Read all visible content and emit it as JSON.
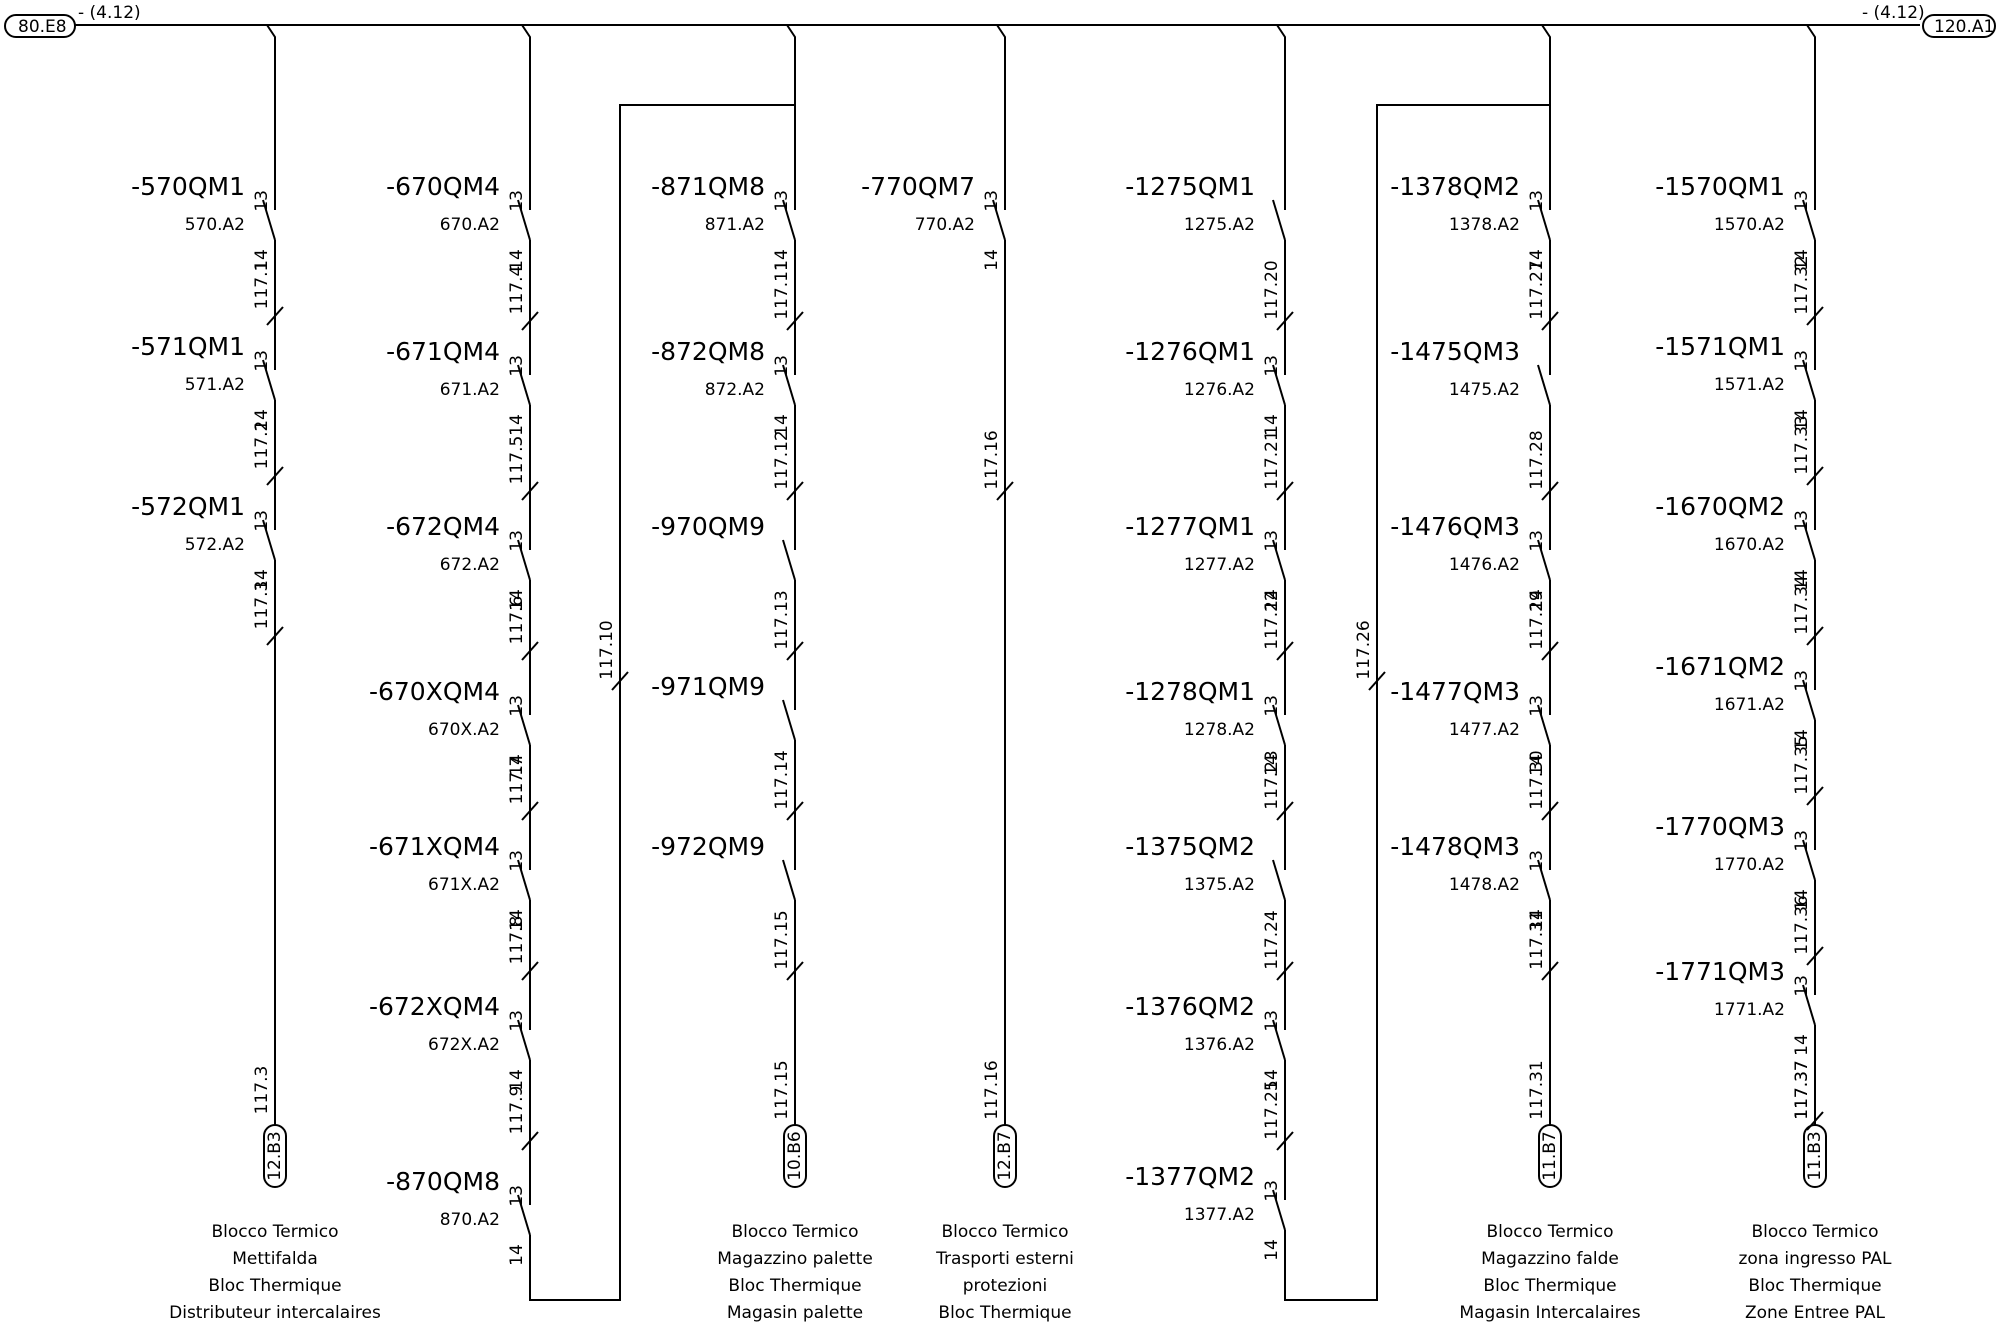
{
  "bus": {
    "left_ref": "80.E8",
    "left_page": "- (4.12)",
    "right_ref": "120.A1",
    "right_page": "- (4.12)"
  },
  "columns": [
    {
      "id": "c1",
      "devices": [
        {
          "name": "-570QM1",
          "ref": "570.A2",
          "wire": "117.1",
          "t13": "13",
          "t14": "14"
        },
        {
          "name": "-571QM1",
          "ref": "571.A2",
          "wire": "117.2",
          "t13": "13",
          "t14": "14"
        },
        {
          "name": "-572QM1",
          "ref": "572.A2",
          "wire": "117.3",
          "t13": "13",
          "t14": "14"
        }
      ],
      "end_wire": "117.3",
      "terminal": "12.B3",
      "caption": [
        "Blocco Termico",
        "Mettifalda",
        "Bloc Thermique",
        "Distributeur intercalaires"
      ]
    },
    {
      "id": "c2",
      "devices": [
        {
          "name": "-670QM4",
          "ref": "670.A2",
          "wire": "117.4",
          "t13": "13",
          "t14": "14"
        },
        {
          "name": "-671QM4",
          "ref": "671.A2",
          "wire": "117.5",
          "t13": "13",
          "t14": "14"
        },
        {
          "name": "-672QM4",
          "ref": "672.A2",
          "wire": "117.6",
          "t13": "13",
          "t14": "14"
        },
        {
          "name": "-670XQM4",
          "ref": "670X.A2",
          "wire": "117.7",
          "t13": "13",
          "t14": "14"
        },
        {
          "name": "-671XQM4",
          "ref": "671X.A2",
          "wire": "117.8",
          "t13": "13",
          "t14": "14"
        },
        {
          "name": "-672XQM4",
          "ref": "672X.A2",
          "wire": "117.9",
          "t13": "13",
          "t14": "14"
        },
        {
          "name": "-870QM8",
          "ref": "870.A2",
          "wire": "",
          "t13": "13",
          "t14": "14"
        }
      ],
      "loop_wire": "117.10"
    },
    {
      "id": "c3",
      "devices": [
        {
          "name": "-871QM8",
          "ref": "871.A2",
          "wire": "117.11",
          "t13": "13",
          "t14": "14"
        },
        {
          "name": "-872QM8",
          "ref": "872.A2",
          "wire": "117.12",
          "t13": "13",
          "t14": "14"
        },
        {
          "name": "-970QM9",
          "ref": "",
          "wire": "117.13",
          "t13": "",
          "t14": ""
        },
        {
          "name": "-971QM9",
          "ref": "",
          "wire": "117.14",
          "t13": "",
          "t14": ""
        },
        {
          "name": "-972QM9",
          "ref": "",
          "wire": "117.15",
          "t13": "",
          "t14": ""
        }
      ],
      "end_wire": "117.15",
      "terminal": "10.B6",
      "caption": [
        "Blocco Termico",
        "Magazzino palette",
        "Bloc Thermique",
        "Magasin palette"
      ]
    },
    {
      "id": "c4",
      "devices": [
        {
          "name": "-770QM7",
          "ref": "770.A2",
          "wire": "117.16",
          "t13": "13",
          "t14": "14"
        }
      ],
      "end_wire": "117.16",
      "terminal": "12.B7",
      "caption": [
        "Blocco Termico",
        "Trasporti esterni",
        "protezioni",
        "Bloc Thermique"
      ]
    },
    {
      "id": "c5",
      "devices": [
        {
          "name": "-1275QM1",
          "ref": "1275.A2",
          "wire": "117.20",
          "t13": "",
          "t14": ""
        },
        {
          "name": "-1276QM1",
          "ref": "1276.A2",
          "wire": "117.21",
          "t13": "13",
          "t14": "14"
        },
        {
          "name": "-1277QM1",
          "ref": "1277.A2",
          "wire": "117.22",
          "t13": "13",
          "t14": "14"
        },
        {
          "name": "-1278QM1",
          "ref": "1278.A2",
          "wire": "117.23",
          "t13": "13",
          "t14": "14"
        },
        {
          "name": "-1375QM2",
          "ref": "1375.A2",
          "wire": "117.24",
          "t13": "",
          "t14": ""
        },
        {
          "name": "-1376QM2",
          "ref": "1376.A2",
          "wire": "117.25",
          "t13": "13",
          "t14": "14"
        },
        {
          "name": "-1377QM2",
          "ref": "1377.A2",
          "wire": "",
          "t13": "13",
          "t14": "14"
        }
      ],
      "loop_wire": "117.26"
    },
    {
      "id": "c6",
      "devices": [
        {
          "name": "-1378QM2",
          "ref": "1378.A2",
          "wire": "117.27",
          "t13": "13",
          "t14": "14"
        },
        {
          "name": "-1475QM3",
          "ref": "1475.A2",
          "wire": "117.28",
          "t13": "",
          "t14": ""
        },
        {
          "name": "-1476QM3",
          "ref": "1476.A2",
          "wire": "117.29",
          "t13": "13",
          "t14": "14"
        },
        {
          "name": "-1477QM3",
          "ref": "1477.A2",
          "wire": "117.30",
          "t13": "13",
          "t14": "14"
        },
        {
          "name": "-1478QM3",
          "ref": "1478.A2",
          "wire": "117.31",
          "t13": "13",
          "t14": "14"
        }
      ],
      "end_wire": "117.31",
      "terminal": "11.B7",
      "caption": [
        "Blocco Termico",
        "Magazzino falde",
        "Bloc Thermique",
        "Magasin Intercalaires"
      ]
    },
    {
      "id": "c7",
      "devices": [
        {
          "name": "-1570QM1",
          "ref": "1570.A2",
          "wire": "117.32",
          "t13": "13",
          "t14": "14"
        },
        {
          "name": "-1571QM1",
          "ref": "1571.A2",
          "wire": "117.33",
          "t13": "13",
          "t14": "14"
        },
        {
          "name": "-1670QM2",
          "ref": "1670.A2",
          "wire": "117.34",
          "t13": "13",
          "t14": "14"
        },
        {
          "name": "-1671QM2",
          "ref": "1671.A2",
          "wire": "117.35",
          "t13": "13",
          "t14": "14"
        },
        {
          "name": "-1770QM3",
          "ref": "1770.A2",
          "wire": "117.36",
          "t13": "13",
          "t14": "14"
        },
        {
          "name": "-1771QM3",
          "ref": "1771.A2",
          "wire": "117.37",
          "t13": "13",
          "t14": "14"
        }
      ],
      "end_wire": "117.37",
      "terminal": "11.B3",
      "caption": [
        "Blocco Termico",
        "zona ingresso PAL",
        "Bloc Thermique",
        "Zone Entree PAL"
      ]
    }
  ]
}
